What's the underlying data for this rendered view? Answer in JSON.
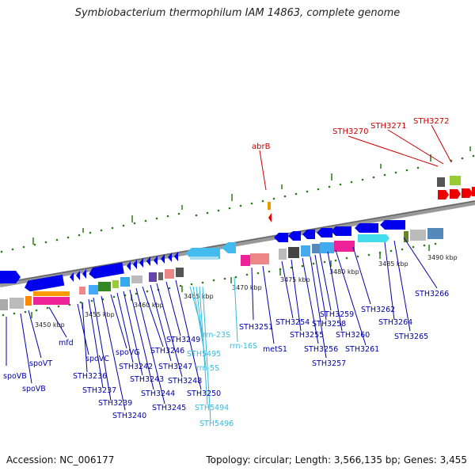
{
  "title": "Symbiobacterium thermophilum IAM 14863, complete genome",
  "footer": {
    "accession": "Accession: NC_006177",
    "topology": "Topology: circular; Length: 3,566,135 bp; Genes: 3,455"
  },
  "colors": {
    "red_label": "#cc0000",
    "blue_label": "#0000aa",
    "cyan_label": "#33bbdd",
    "tick": "#2a7a1a",
    "backbone": "#888888"
  },
  "kbp_ticks": [
    "3450 kbp",
    "3455 kbp",
    "3460 kbp",
    "3465 kbp",
    "3470 kbp",
    "3475 kbp",
    "3480 kbp",
    "3485 kbp",
    "3490 kbp"
  ],
  "red_labels": [
    "abrB",
    "STH3270",
    "STH3271",
    "STH3272"
  ],
  "blue_labels": [
    "spoVB",
    "spoVT",
    "spoVB",
    "mfd",
    "spoVC",
    "STH3236",
    "STH3237",
    "STH3239",
    "STH3240",
    "spoVG",
    "STH3242",
    "STH3243",
    "STH3244",
    "STH3245",
    "STH3246",
    "STH3247",
    "STH3248",
    "STH3249",
    "STH3250",
    "STH3251",
    "metS1",
    "STH3254",
    "STH3255",
    "STH3256",
    "STH3257",
    "STH3258",
    "STH3259",
    "STH3260",
    "STH3261",
    "STH3262",
    "STH3264",
    "STH3265",
    "STH3266"
  ],
  "cyan_labels": [
    "rrn-23S",
    "rrn-16S",
    "STH5495",
    "rrn-5S",
    "STH5494",
    "STH5496"
  ]
}
